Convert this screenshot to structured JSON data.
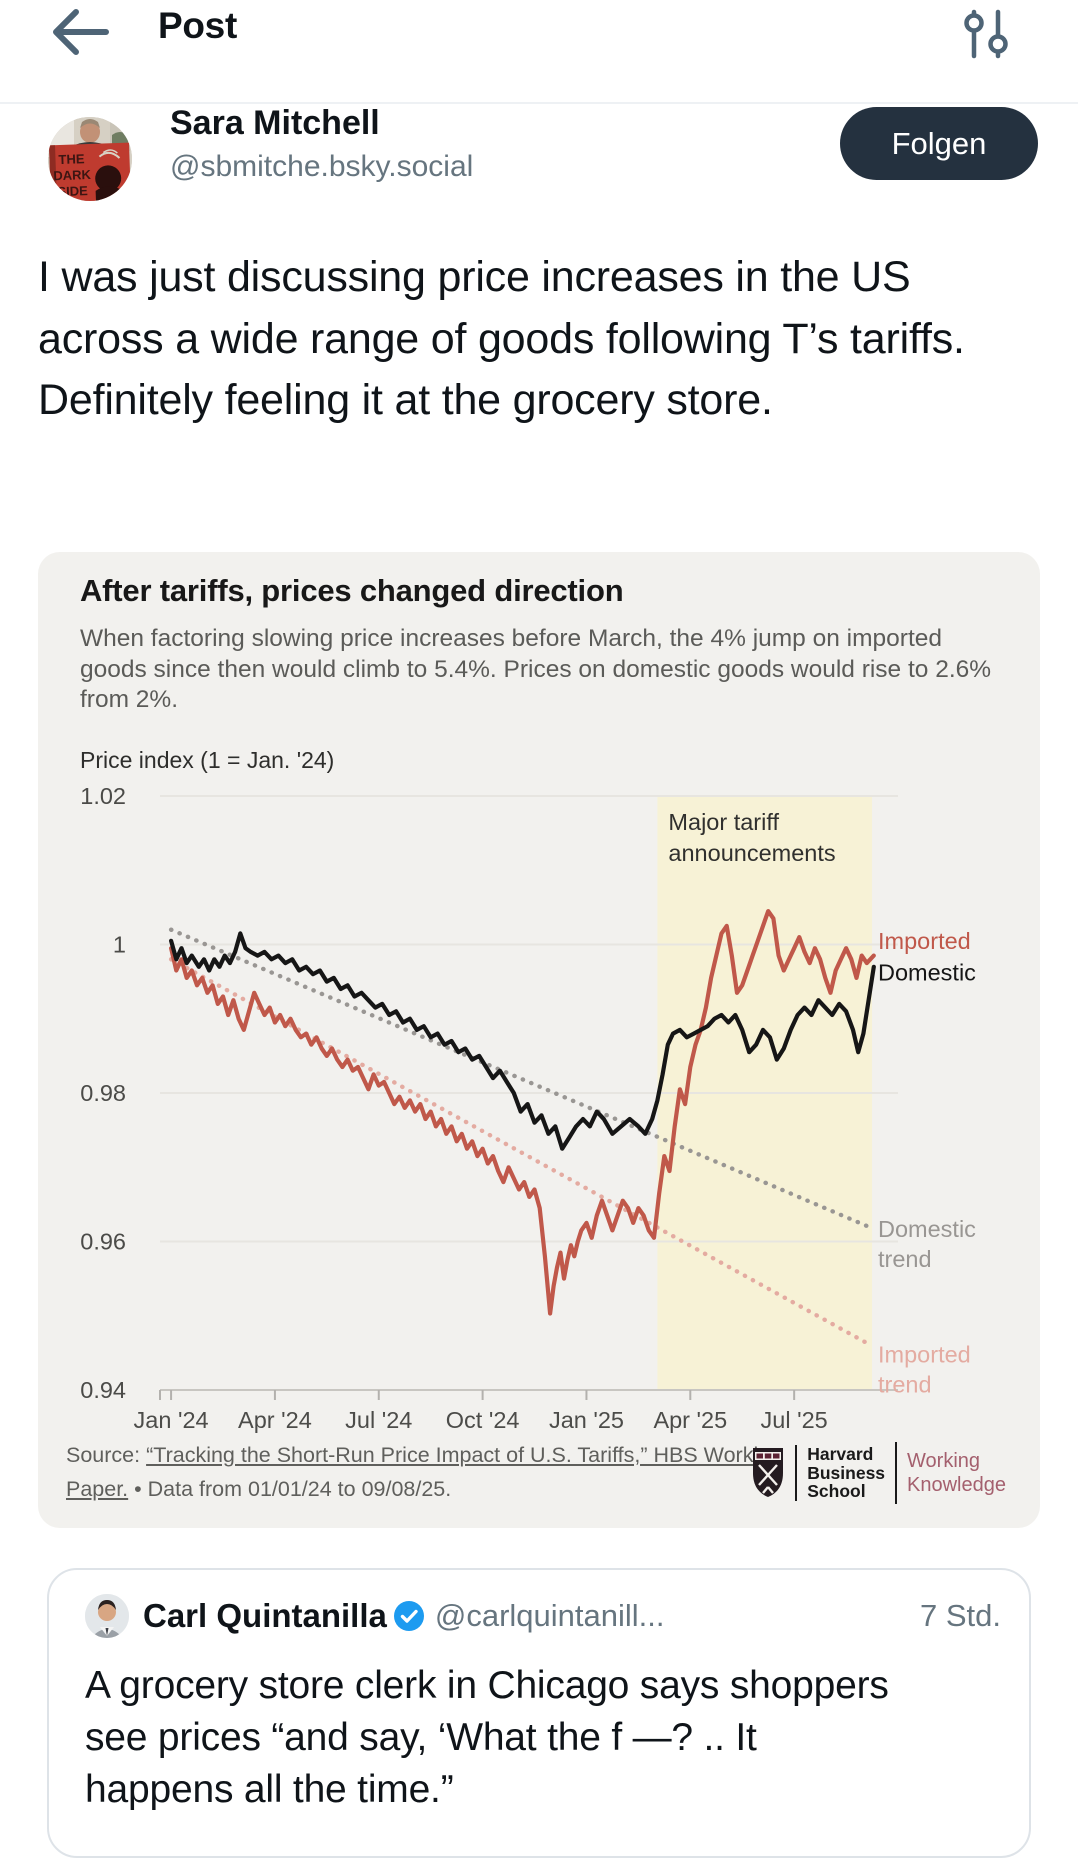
{
  "header": {
    "title": "Post"
  },
  "post": {
    "author": {
      "name": "Sara Mitchell",
      "handle": "@sbmitche.bsky.social"
    },
    "follow_button": "Folgen",
    "body": "I was just discussing price increases in the US across a wide range of goods following T’s tariffs. Definitely feeling it at the grocery store."
  },
  "chart_card": {
    "title": "After tariffs, prices changed direction",
    "subtitle": "When factoring slowing price increases before March, the 4% jump on imported goods since then would climb to 5.4%. Prices on domestic goods would rise to 2.6% from 2%.",
    "axis_title": "Price index (1 = Jan. '24)",
    "source": {
      "prefix": "Source: ",
      "link": "“Tracking the Short-Run Price Impact of U.S. Tariffs,” HBS Working Paper.",
      "suffix": " • Data from 01/01/24 to 09/08/25."
    },
    "logo": {
      "school": [
        "Harvard",
        "Business",
        "School"
      ],
      "brand": [
        "Working",
        "Knowledge"
      ],
      "brand_color": "#a4606e"
    }
  },
  "chart_data": {
    "type": "line",
    "title": "After tariffs, prices changed direction",
    "xlabel": "",
    "ylabel": "Price index (1 = Jan. '24)",
    "x_unit": "months since Jan 2024",
    "xlim": [
      -0.32,
      21.0
    ],
    "ylim": [
      0.94,
      1.02
    ],
    "grid": true,
    "x_ticks": [
      {
        "m": 0,
        "label": "Jan '24"
      },
      {
        "m": 3,
        "label": "Apr '24"
      },
      {
        "m": 6,
        "label": "Jul '24"
      },
      {
        "m": 9,
        "label": "Oct '24"
      },
      {
        "m": 12,
        "label": "Jan '25"
      },
      {
        "m": 15,
        "label": "Apr '25"
      },
      {
        "m": 18,
        "label": "Jul '25"
      }
    ],
    "y_ticks": [
      {
        "v": 1.02,
        "label": "1.02"
      },
      {
        "v": 1.0,
        "label": "1"
      },
      {
        "v": 0.98,
        "label": "0.98"
      },
      {
        "v": 0.96,
        "label": "0.96"
      },
      {
        "v": 0.94,
        "label": "0.94"
      }
    ],
    "band": {
      "from": 14.05,
      "to": 20.25,
      "color": "#f7f2d6",
      "label_lines": [
        "Major tariff",
        "announcements"
      ]
    },
    "series": [
      {
        "name": "Domestic trend",
        "color": "#999693",
        "style": "dotted",
        "label_lines": [
          "Domestic",
          "trend"
        ],
        "label_v": 0.9617,
        "points": [
          [
            0,
            1.002
          ],
          [
            20.15,
            0.962
          ]
        ]
      },
      {
        "name": "Imported trend",
        "color": "#e4aba1",
        "style": "dotted",
        "label_lines": [
          "Imported",
          "trend"
        ],
        "label_v": 0.9448,
        "points": [
          [
            0,
            0.998
          ],
          [
            20.15,
            0.9462
          ]
        ]
      },
      {
        "name": "Imported",
        "color": "#c0584a",
        "style": "solid",
        "label_lines": [
          "Imported"
        ],
        "label_v": 1.0005,
        "points": [
          [
            0,
            0.9995
          ],
          [
            0.15,
            0.9965
          ],
          [
            0.3,
            0.998
          ],
          [
            0.45,
            0.9955
          ],
          [
            0.6,
            0.9965
          ],
          [
            0.75,
            0.9945
          ],
          [
            0.9,
            0.9955
          ],
          [
            1.05,
            0.9935
          ],
          [
            1.2,
            0.9945
          ],
          [
            1.35,
            0.992
          ],
          [
            1.5,
            0.993
          ],
          [
            1.65,
            0.9905
          ],
          [
            1.8,
            0.9925
          ],
          [
            1.95,
            0.99
          ],
          [
            2.1,
            0.9885
          ],
          [
            2.25,
            0.991
          ],
          [
            2.4,
            0.9935
          ],
          [
            2.55,
            0.992
          ],
          [
            2.7,
            0.9905
          ],
          [
            2.85,
            0.9915
          ],
          [
            3,
            0.9895
          ],
          [
            3.15,
            0.9905
          ],
          [
            3.3,
            0.989
          ],
          [
            3.45,
            0.99
          ],
          [
            3.6,
            0.9885
          ],
          [
            3.75,
            0.9875
          ],
          [
            3.9,
            0.988
          ],
          [
            4.05,
            0.9865
          ],
          [
            4.2,
            0.9875
          ],
          [
            4.35,
            0.986
          ],
          [
            4.5,
            0.985
          ],
          [
            4.65,
            0.986
          ],
          [
            4.8,
            0.9845
          ],
          [
            4.95,
            0.9835
          ],
          [
            5.1,
            0.9845
          ],
          [
            5.25,
            0.983
          ],
          [
            5.4,
            0.9835
          ],
          [
            5.55,
            0.982
          ],
          [
            5.7,
            0.9805
          ],
          [
            5.85,
            0.9825
          ],
          [
            6,
            0.981
          ],
          [
            6.15,
            0.9815
          ],
          [
            6.3,
            0.98
          ],
          [
            6.45,
            0.9785
          ],
          [
            6.6,
            0.9795
          ],
          [
            6.75,
            0.978
          ],
          [
            6.9,
            0.979
          ],
          [
            7.05,
            0.9775
          ],
          [
            7.2,
            0.9785
          ],
          [
            7.35,
            0.9765
          ],
          [
            7.5,
            0.9775
          ],
          [
            7.65,
            0.9755
          ],
          [
            7.8,
            0.9765
          ],
          [
            7.95,
            0.9745
          ],
          [
            8.1,
            0.9755
          ],
          [
            8.25,
            0.9735
          ],
          [
            8.4,
            0.9745
          ],
          [
            8.55,
            0.9725
          ],
          [
            8.7,
            0.9735
          ],
          [
            8.85,
            0.9715
          ],
          [
            9,
            0.9725
          ],
          [
            9.15,
            0.9705
          ],
          [
            9.3,
            0.9715
          ],
          [
            9.45,
            0.9695
          ],
          [
            9.6,
            0.968
          ],
          [
            9.75,
            0.97
          ],
          [
            9.9,
            0.9685
          ],
          [
            10.05,
            0.967
          ],
          [
            10.2,
            0.968
          ],
          [
            10.35,
            0.966
          ],
          [
            10.5,
            0.967
          ],
          [
            10.65,
            0.9645
          ],
          [
            10.8,
            0.958
          ],
          [
            10.95,
            0.9503
          ],
          [
            11.05,
            0.954
          ],
          [
            11.15,
            0.9565
          ],
          [
            11.25,
            0.9585
          ],
          [
            11.35,
            0.955
          ],
          [
            11.45,
            0.9575
          ],
          [
            11.55,
            0.9595
          ],
          [
            11.65,
            0.958
          ],
          [
            11.75,
            0.96
          ],
          [
            11.85,
            0.9615
          ],
          [
            12,
            0.9625
          ],
          [
            12.15,
            0.9605
          ],
          [
            12.3,
            0.9635
          ],
          [
            12.45,
            0.9655
          ],
          [
            12.6,
            0.9635
          ],
          [
            12.75,
            0.9615
          ],
          [
            12.9,
            0.9635
          ],
          [
            13.05,
            0.9655
          ],
          [
            13.2,
            0.9645
          ],
          [
            13.35,
            0.9625
          ],
          [
            13.5,
            0.9645
          ],
          [
            13.65,
            0.9635
          ],
          [
            13.8,
            0.9615
          ],
          [
            13.95,
            0.9605
          ],
          [
            14.1,
            0.9665
          ],
          [
            14.25,
            0.9715
          ],
          [
            14.4,
            0.9695
          ],
          [
            14.55,
            0.9755
          ],
          [
            14.7,
            0.9805
          ],
          [
            14.85,
            0.9785
          ],
          [
            15,
            0.9835
          ],
          [
            15.15,
            0.9865
          ],
          [
            15.3,
            0.9885
          ],
          [
            15.45,
            0.9915
          ],
          [
            15.6,
            0.9955
          ],
          [
            15.75,
            0.9985
          ],
          [
            15.9,
            1.0015
          ],
          [
            16.05,
            1.0025
          ],
          [
            16.2,
            0.9985
          ],
          [
            16.35,
            0.9935
          ],
          [
            16.5,
            0.9945
          ],
          [
            16.65,
            0.9965
          ],
          [
            16.8,
            0.9985
          ],
          [
            16.95,
            1.0005
          ],
          [
            17.1,
            1.0025
          ],
          [
            17.25,
            1.0045
          ],
          [
            17.4,
            1.0035
          ],
          [
            17.55,
            0.9985
          ],
          [
            17.7,
            0.9965
          ],
          [
            17.85,
            0.998
          ],
          [
            18,
            0.9995
          ],
          [
            18.15,
            1.001
          ],
          [
            18.3,
            0.999
          ],
          [
            18.45,
            0.9975
          ],
          [
            18.6,
            0.9995
          ],
          [
            18.75,
            0.998
          ],
          [
            18.9,
            0.9955
          ],
          [
            19.05,
            0.9935
          ],
          [
            19.2,
            0.9965
          ],
          [
            19.35,
            0.998
          ],
          [
            19.5,
            0.9995
          ],
          [
            19.65,
            0.998
          ],
          [
            19.8,
            0.9955
          ],
          [
            19.95,
            0.9985
          ],
          [
            20.1,
            0.9975
          ],
          [
            20.3,
            0.9985
          ]
        ]
      },
      {
        "name": "Domestic",
        "color": "#161616",
        "style": "solid",
        "label_lines": [
          "Domestic"
        ],
        "label_v": 0.9962,
        "points": [
          [
            0,
            1.0005
          ],
          [
            0.15,
            0.998
          ],
          [
            0.3,
            0.9995
          ],
          [
            0.45,
            0.9975
          ],
          [
            0.6,
            0.9985
          ],
          [
            0.8,
            0.997
          ],
          [
            0.95,
            0.998
          ],
          [
            1.1,
            0.9965
          ],
          [
            1.25,
            0.998
          ],
          [
            1.4,
            0.997
          ],
          [
            1.55,
            0.9985
          ],
          [
            1.7,
            0.9975
          ],
          [
            1.85,
            0.999
          ],
          [
            2,
            1.0015
          ],
          [
            2.15,
            0.9995
          ],
          [
            2.3,
            0.999
          ],
          [
            2.5,
            0.9985
          ],
          [
            2.7,
            0.999
          ],
          [
            2.9,
            0.998
          ],
          [
            3.1,
            0.9985
          ],
          [
            3.3,
            0.9975
          ],
          [
            3.5,
            0.998
          ],
          [
            3.7,
            0.9965
          ],
          [
            3.9,
            0.997
          ],
          [
            4.1,
            0.996
          ],
          [
            4.3,
            0.9965
          ],
          [
            4.5,
            0.995
          ],
          [
            4.7,
            0.9955
          ],
          [
            4.9,
            0.994
          ],
          [
            5.1,
            0.9945
          ],
          [
            5.3,
            0.993
          ],
          [
            5.5,
            0.9935
          ],
          [
            5.7,
            0.9925
          ],
          [
            5.9,
            0.9915
          ],
          [
            6.1,
            0.992
          ],
          [
            6.3,
            0.9905
          ],
          [
            6.5,
            0.991
          ],
          [
            6.7,
            0.9895
          ],
          [
            6.9,
            0.99
          ],
          [
            7.1,
            0.9885
          ],
          [
            7.3,
            0.989
          ],
          [
            7.5,
            0.9875
          ],
          [
            7.7,
            0.988
          ],
          [
            7.9,
            0.9865
          ],
          [
            8.1,
            0.987
          ],
          [
            8.3,
            0.9855
          ],
          [
            8.5,
            0.986
          ],
          [
            8.7,
            0.9845
          ],
          [
            8.9,
            0.985
          ],
          [
            9.1,
            0.9835
          ],
          [
            9.3,
            0.982
          ],
          [
            9.5,
            0.983
          ],
          [
            9.7,
            0.9815
          ],
          [
            9.9,
            0.98
          ],
          [
            10.1,
            0.9775
          ],
          [
            10.3,
            0.9785
          ],
          [
            10.5,
            0.976
          ],
          [
            10.7,
            0.977
          ],
          [
            10.9,
            0.9745
          ],
          [
            11.1,
            0.9755
          ],
          [
            11.3,
            0.9725
          ],
          [
            11.5,
            0.974
          ],
          [
            11.7,
            0.9755
          ],
          [
            11.9,
            0.9765
          ],
          [
            12.1,
            0.9755
          ],
          [
            12.3,
            0.9775
          ],
          [
            12.5,
            0.9765
          ],
          [
            12.75,
            0.9745
          ],
          [
            13,
            0.9755
          ],
          [
            13.25,
            0.9765
          ],
          [
            13.5,
            0.9755
          ],
          [
            13.7,
            0.9745
          ],
          [
            13.9,
            0.9765
          ],
          [
            14.05,
            0.979
          ],
          [
            14.2,
            0.9825
          ],
          [
            14.35,
            0.9865
          ],
          [
            14.5,
            0.988
          ],
          [
            14.7,
            0.9885
          ],
          [
            14.9,
            0.9875
          ],
          [
            15.1,
            0.988
          ],
          [
            15.3,
            0.9885
          ],
          [
            15.5,
            0.989
          ],
          [
            15.7,
            0.99
          ],
          [
            15.9,
            0.9905
          ],
          [
            16.1,
            0.9895
          ],
          [
            16.3,
            0.9905
          ],
          [
            16.5,
            0.9885
          ],
          [
            16.7,
            0.9855
          ],
          [
            16.9,
            0.9865
          ],
          [
            17.1,
            0.9885
          ],
          [
            17.3,
            0.9875
          ],
          [
            17.5,
            0.9845
          ],
          [
            17.7,
            0.986
          ],
          [
            17.9,
            0.9885
          ],
          [
            18.1,
            0.9905
          ],
          [
            18.3,
            0.9915
          ],
          [
            18.5,
            0.9905
          ],
          [
            18.7,
            0.9925
          ],
          [
            18.9,
            0.9915
          ],
          [
            19.1,
            0.9905
          ],
          [
            19.3,
            0.992
          ],
          [
            19.5,
            0.991
          ],
          [
            19.7,
            0.9885
          ],
          [
            19.85,
            0.9855
          ],
          [
            20,
            0.988
          ],
          [
            20.15,
            0.9925
          ],
          [
            20.3,
            0.997
          ]
        ]
      }
    ]
  },
  "quote": {
    "author": "Carl Quintanilla",
    "verified": true,
    "handle": "@carlquintanill...",
    "time": "7 Std.",
    "body": "A grocery store clerk in Chicago says shoppers see prices “and say, ‘What the f —? .. It happens all the time.”"
  },
  "colors": {
    "accent_blue": "#1d9bf0",
    "follow_button_bg": "#24313f",
    "icon_slate": "#4e6476",
    "imported_line": "#c0584a",
    "domestic_line": "#161616",
    "tariff_band": "#f7f2d6"
  }
}
